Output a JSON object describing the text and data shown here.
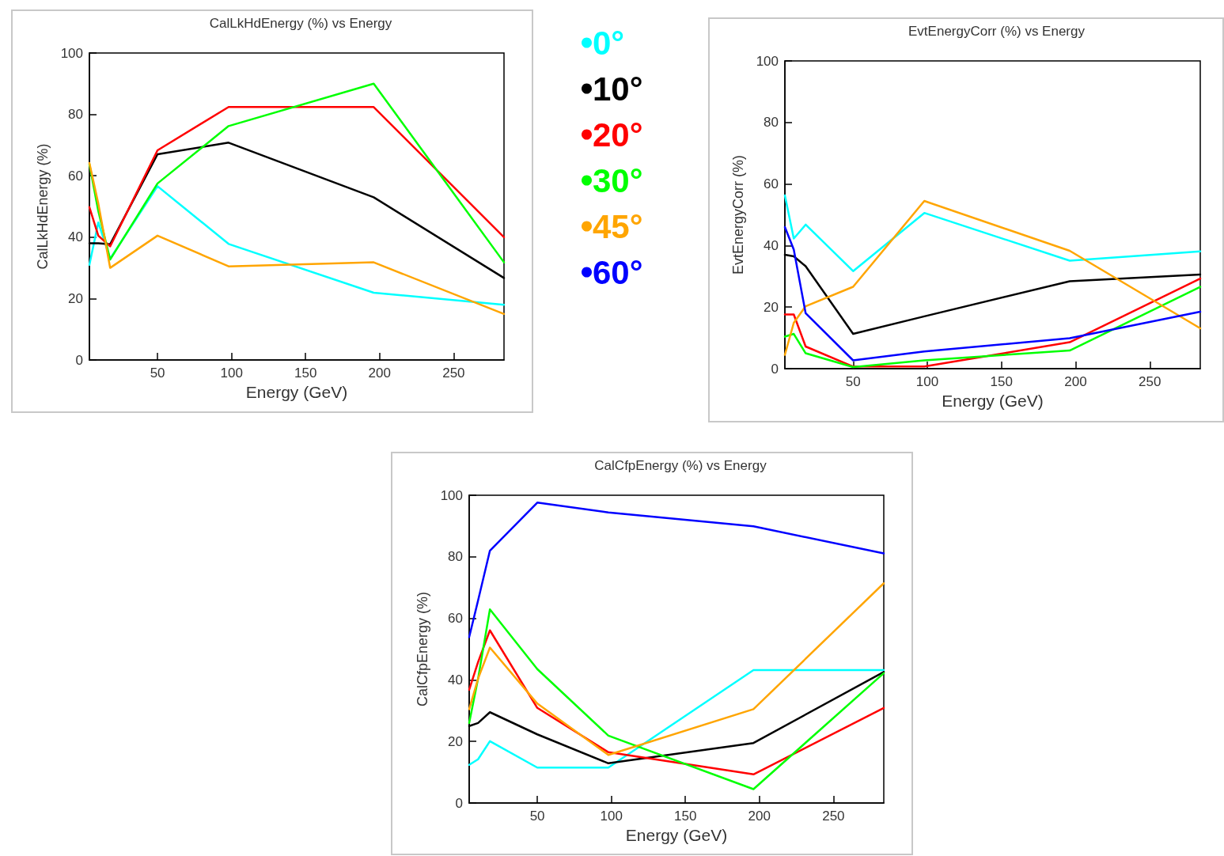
{
  "chart_data": [
    {
      "type": "line",
      "title": "CalLkHdEnergy (%) vs Energy",
      "xlabel": "Energy (GeV)",
      "ylabel": "CalLkHdEnergy (%)",
      "x": [
        4,
        10,
        18,
        50,
        98,
        196,
        284
      ],
      "xlim": [
        4,
        284
      ],
      "xticks": [
        50,
        100,
        150,
        200,
        250
      ],
      "ylim": [
        0,
        100
      ],
      "yticks": [
        0,
        20,
        40,
        60,
        80,
        100
      ],
      "grid": false,
      "legend": "right",
      "marker": "none",
      "series": [
        {
          "name": "0°",
          "color": "#00ffff",
          "values": [
            31,
            44.8,
            33,
            56.6,
            37.8,
            21.9,
            18
          ]
        },
        {
          "name": "10°",
          "color": "#000000",
          "values": [
            38,
            38,
            37.7,
            67,
            70.8,
            53,
            26.7
          ]
        },
        {
          "name": "20°",
          "color": "#ff0000",
          "values": [
            49.8,
            40.5,
            37,
            68.3,
            82.4,
            82.4,
            40
          ]
        },
        {
          "name": "30°",
          "color": "#00ff00",
          "values": [
            63.8,
            48.5,
            32.7,
            57.5,
            76.2,
            90,
            31.8
          ]
        },
        {
          "name": "45°",
          "color": "#ffa500",
          "values": [
            64.2,
            51,
            30,
            40.5,
            30.5,
            31.8,
            15
          ]
        },
        {
          "name": "60°",
          "color": "#0000ff",
          "values": [
            null,
            null,
            null,
            null,
            null,
            null,
            null
          ]
        }
      ]
    },
    {
      "type": "line",
      "title": "EvtEnergyCorr (%) vs Energy",
      "xlabel": "Energy (GeV)",
      "ylabel": "EvtEnergyCorr (%)",
      "x": [
        4,
        10,
        18,
        50,
        98,
        196,
        284
      ],
      "xlim": [
        4,
        284
      ],
      "xticks": [
        50,
        100,
        150,
        200,
        250
      ],
      "ylim": [
        0,
        100
      ],
      "yticks": [
        0,
        20,
        40,
        60,
        80,
        100
      ],
      "grid": false,
      "marker": "none",
      "series": [
        {
          "color": "#00ffff",
          "values": [
            56.3,
            42.3,
            46.8,
            31.7,
            50.6,
            35.1,
            38.1
          ]
        },
        {
          "color": "#000000",
          "values": [
            37,
            36.5,
            33.3,
            11.3,
            17,
            28.4,
            30.6
          ]
        },
        {
          "color": "#ff0000",
          "values": [
            17.6,
            17.6,
            7.2,
            0.7,
            0.7,
            8.6,
            29.3
          ]
        },
        {
          "color": "#00ff00",
          "values": [
            10.4,
            11.3,
            5,
            0.5,
            2.7,
            5.9,
            26.6
          ]
        },
        {
          "color": "#ffa500",
          "values": [
            4.5,
            14.9,
            20.3,
            26.6,
            54.5,
            38.3,
            13.1
          ]
        },
        {
          "color": "#0000ff",
          "values": [
            46,
            38.7,
            18,
            2.7,
            5.6,
            9.9,
            18.5
          ]
        }
      ]
    },
    {
      "type": "line",
      "title": "CalCfpEnergy (%) vs Energy",
      "xlabel": "Energy (GeV)",
      "ylabel": "CalCfpEnergy (%)",
      "x": [
        4,
        10,
        18,
        50,
        98,
        196,
        284
      ],
      "xlim": [
        4,
        284
      ],
      "xticks": [
        50,
        100,
        150,
        200,
        250
      ],
      "ylim": [
        0,
        100
      ],
      "yticks": [
        0,
        20,
        40,
        60,
        80,
        100
      ],
      "grid": false,
      "marker": "none",
      "series": [
        {
          "color": "#00ffff",
          "values": [
            12.4,
            14.2,
            20.1,
            11.5,
            11.5,
            43.2,
            43.2
          ]
        },
        {
          "color": "#000000",
          "values": [
            25,
            26,
            29.5,
            22.3,
            12.9,
            19.5,
            42.6
          ]
        },
        {
          "color": "#ff0000",
          "values": [
            36.8,
            45.8,
            56.1,
            30.9,
            16.5,
            9.3,
            30.9
          ]
        },
        {
          "color": "#00ff00",
          "values": [
            26,
            40.4,
            62.9,
            43.5,
            21.9,
            4.5,
            42.2
          ]
        },
        {
          "color": "#ffa500",
          "values": [
            30.5,
            40.4,
            50.5,
            32.3,
            15.6,
            30.5,
            71.4
          ]
        },
        {
          "color": "#0000ff",
          "values": [
            53.9,
            65.8,
            82,
            97.6,
            94.4,
            89.9,
            81.1
          ]
        }
      ]
    }
  ]
}
